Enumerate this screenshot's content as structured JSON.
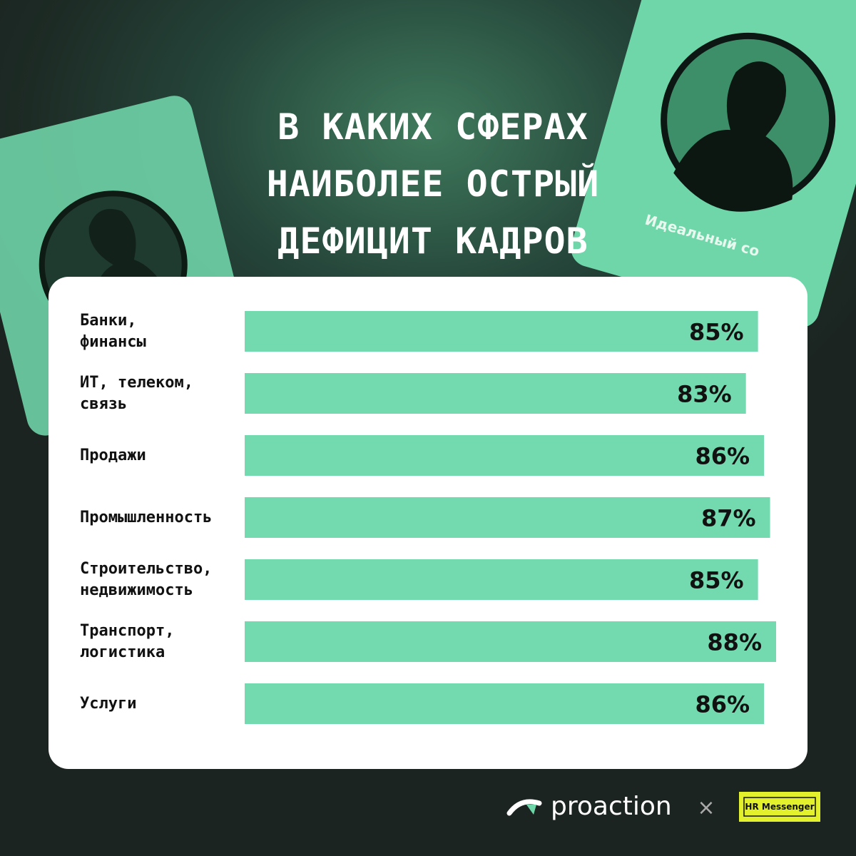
{
  "chart_data": {
    "type": "bar",
    "title": "В КАКИХ СФЕРАХ\nНАИБОЛЕЕ ОСТРЫЙ\nДЕФИЦИТ КАДРОВ",
    "categories": [
      "Банки,\nфинансы",
      "ИТ, телеком,\nсвязь",
      "Продажи",
      "Промышленность",
      "Строительство,\nнедвижимость",
      "Транспорт,\nлогистика",
      "Услуги"
    ],
    "values": [
      85,
      83,
      86,
      87,
      85,
      88,
      86
    ],
    "value_labels": [
      "85%",
      "83%",
      "86%",
      "87%",
      "85%",
      "88%",
      "86%"
    ],
    "color": "#73d9ae"
  },
  "decoration": {
    "card_caption": "Идеальный со"
  },
  "footer": {
    "brand": "proaction",
    "separator": "×",
    "partner": "HR Messenger"
  }
}
